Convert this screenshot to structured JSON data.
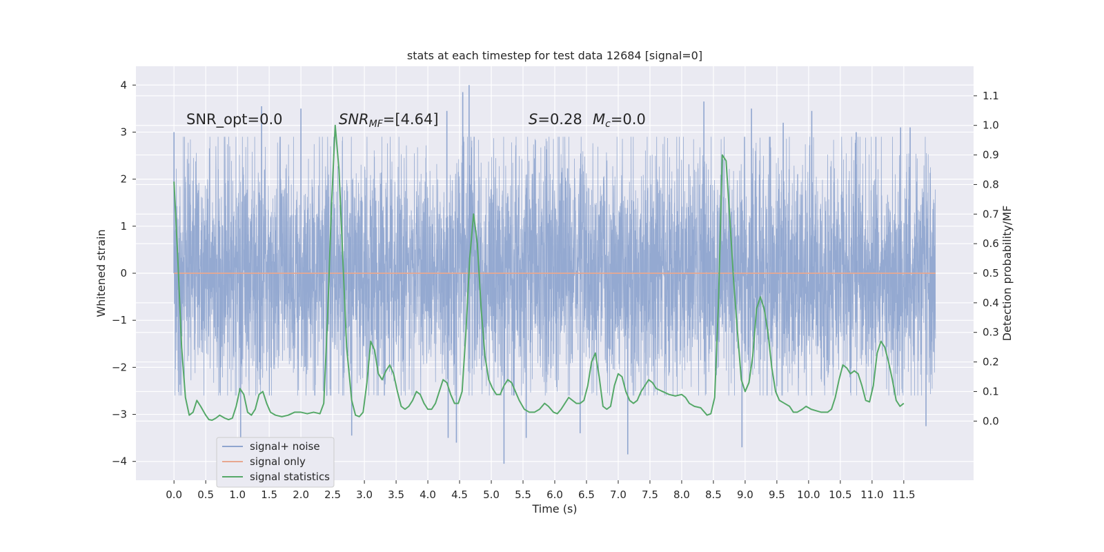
{
  "chart_data": {
    "type": "line",
    "title": "stats at each timestep for test data 12684 [signal=0]",
    "xlabel": "Time (s)",
    "ylabel_left": "Whitened strain",
    "ylabel_right": "Detection probability/MF",
    "xlim": [
      -0.6,
      12.6
    ],
    "ylim_left": [
      -4.4,
      4.4
    ],
    "ylim_right": [
      -0.2,
      1.2
    ],
    "x_ticks": [
      "0.0",
      "0.5",
      "1.0",
      "1.5",
      "2.0",
      "2.5",
      "3.0",
      "3.5",
      "4.0",
      "4.5",
      "5.0",
      "5.5",
      "6.0",
      "6.5",
      "7.0",
      "7.5",
      "8.0",
      "8.5",
      "9.0",
      "9.5",
      "10.0",
      "10.5",
      "11.0",
      "11.5"
    ],
    "y_ticks_left": [
      "−4",
      "−3",
      "−2",
      "−1",
      "0",
      "1",
      "2",
      "3",
      "4"
    ],
    "y_ticks_right": [
      "0.0",
      "0.1",
      "0.2",
      "0.3",
      "0.4",
      "0.5",
      "0.6",
      "0.7",
      "0.8",
      "0.9",
      "1.0",
      "1.1"
    ],
    "grid": true,
    "legend_placement": "lower-left",
    "annotations": {
      "snr_opt": "SNR_opt=0.0",
      "snr_mf_main": "SNR",
      "snr_mf_sub": "MF",
      "snr_mf_value": "=[4.64]",
      "s_main": "S",
      "s_value": "=0.28",
      "mc_main": "M",
      "mc_sub": "c",
      "mc_value": "=0.0"
    },
    "series": [
      {
        "name": "signal+ noise",
        "color": "#8fa5cf",
        "x_range": [
          0.0,
          12.0
        ],
        "band_typical": [
          -1.3,
          1.3
        ],
        "band_envelope": [
          -2.6,
          2.9
        ],
        "extreme_peaks": [
          {
            "x": 0.0,
            "y": 3.0
          },
          {
            "x": 1.05,
            "y": -3.65
          },
          {
            "x": 1.38,
            "y": 3.55
          },
          {
            "x": 2.0,
            "y": 3.5
          },
          {
            "x": 2.8,
            "y": -3.45
          },
          {
            "x": 4.3,
            "y": 3.45
          },
          {
            "x": 4.32,
            "y": -3.5
          },
          {
            "x": 4.45,
            "y": -3.6
          },
          {
            "x": 4.55,
            "y": 3.85
          },
          {
            "x": 4.65,
            "y": 4.0
          },
          {
            "x": 5.2,
            "y": -4.05
          },
          {
            "x": 5.55,
            "y": -3.5
          },
          {
            "x": 6.4,
            "y": -3.4
          },
          {
            "x": 7.15,
            "y": -3.85
          },
          {
            "x": 8.35,
            "y": 3.65
          },
          {
            "x": 8.95,
            "y": -3.7
          },
          {
            "x": 9.1,
            "y": 3.5
          },
          {
            "x": 9.6,
            "y": 3.2
          },
          {
            "x": 10.05,
            "y": 3.45
          },
          {
            "x": 10.75,
            "y": 3.0
          },
          {
            "x": 11.45,
            "y": 3.1
          },
          {
            "x": 11.6,
            "y": 3.1
          },
          {
            "x": 11.85,
            "y": -3.25
          }
        ]
      },
      {
        "name": "signal only",
        "color": "#e8a78f",
        "x": [
          0.0,
          12.0
        ],
        "y": [
          0.0,
          0.0
        ]
      },
      {
        "name": "signal statistics",
        "color": "#55a868",
        "axis": "right",
        "points": [
          [
            0.0,
            0.81
          ],
          [
            0.06,
            0.55
          ],
          [
            0.12,
            0.25
          ],
          [
            0.18,
            0.08
          ],
          [
            0.24,
            0.02
          ],
          [
            0.3,
            0.03
          ],
          [
            0.36,
            0.07
          ],
          [
            0.42,
            0.05
          ],
          [
            0.5,
            0.02
          ],
          [
            0.55,
            0.005
          ],
          [
            0.6,
            0.003
          ],
          [
            0.66,
            0.01
          ],
          [
            0.72,
            0.02
          ],
          [
            0.8,
            0.01
          ],
          [
            0.86,
            0.005
          ],
          [
            0.92,
            0.01
          ],
          [
            0.98,
            0.05
          ],
          [
            1.04,
            0.11
          ],
          [
            1.1,
            0.09
          ],
          [
            1.16,
            0.03
          ],
          [
            1.22,
            0.02
          ],
          [
            1.28,
            0.04
          ],
          [
            1.34,
            0.09
          ],
          [
            1.4,
            0.1
          ],
          [
            1.46,
            0.06
          ],
          [
            1.52,
            0.03
          ],
          [
            1.6,
            0.02
          ],
          [
            1.7,
            0.015
          ],
          [
            1.8,
            0.02
          ],
          [
            1.9,
            0.03
          ],
          [
            2.0,
            0.03
          ],
          [
            2.1,
            0.025
          ],
          [
            2.2,
            0.03
          ],
          [
            2.3,
            0.025
          ],
          [
            2.36,
            0.06
          ],
          [
            2.42,
            0.35
          ],
          [
            2.48,
            0.72
          ],
          [
            2.54,
            1.0
          ],
          [
            2.6,
            0.85
          ],
          [
            2.66,
            0.55
          ],
          [
            2.72,
            0.25
          ],
          [
            2.8,
            0.07
          ],
          [
            2.86,
            0.02
          ],
          [
            2.92,
            0.015
          ],
          [
            2.98,
            0.03
          ],
          [
            3.04,
            0.13
          ],
          [
            3.1,
            0.27
          ],
          [
            3.16,
            0.24
          ],
          [
            3.22,
            0.16
          ],
          [
            3.28,
            0.14
          ],
          [
            3.34,
            0.17
          ],
          [
            3.4,
            0.19
          ],
          [
            3.46,
            0.16
          ],
          [
            3.52,
            0.1
          ],
          [
            3.58,
            0.05
          ],
          [
            3.64,
            0.04
          ],
          [
            3.7,
            0.05
          ],
          [
            3.76,
            0.07
          ],
          [
            3.82,
            0.1
          ],
          [
            3.88,
            0.09
          ],
          [
            3.94,
            0.06
          ],
          [
            4.0,
            0.04
          ],
          [
            4.06,
            0.04
          ],
          [
            4.12,
            0.06
          ],
          [
            4.18,
            0.1
          ],
          [
            4.24,
            0.14
          ],
          [
            4.3,
            0.13
          ],
          [
            4.36,
            0.09
          ],
          [
            4.42,
            0.06
          ],
          [
            4.48,
            0.06
          ],
          [
            4.54,
            0.1
          ],
          [
            4.6,
            0.3
          ],
          [
            4.66,
            0.55
          ],
          [
            4.72,
            0.7
          ],
          [
            4.78,
            0.6
          ],
          [
            4.84,
            0.38
          ],
          [
            4.9,
            0.22
          ],
          [
            4.96,
            0.14
          ],
          [
            5.02,
            0.11
          ],
          [
            5.08,
            0.09
          ],
          [
            5.14,
            0.09
          ],
          [
            5.2,
            0.12
          ],
          [
            5.26,
            0.14
          ],
          [
            5.32,
            0.13
          ],
          [
            5.38,
            0.1
          ],
          [
            5.44,
            0.07
          ],
          [
            5.52,
            0.04
          ],
          [
            5.6,
            0.03
          ],
          [
            5.68,
            0.03
          ],
          [
            5.76,
            0.04
          ],
          [
            5.84,
            0.06
          ],
          [
            5.9,
            0.05
          ],
          [
            5.98,
            0.03
          ],
          [
            6.04,
            0.025
          ],
          [
            6.1,
            0.04
          ],
          [
            6.16,
            0.06
          ],
          [
            6.22,
            0.08
          ],
          [
            6.28,
            0.07
          ],
          [
            6.34,
            0.06
          ],
          [
            6.4,
            0.06
          ],
          [
            6.46,
            0.07
          ],
          [
            6.52,
            0.12
          ],
          [
            6.58,
            0.2
          ],
          [
            6.64,
            0.23
          ],
          [
            6.7,
            0.15
          ],
          [
            6.76,
            0.05
          ],
          [
            6.82,
            0.04
          ],
          [
            6.88,
            0.05
          ],
          [
            6.94,
            0.12
          ],
          [
            7.0,
            0.16
          ],
          [
            7.06,
            0.15
          ],
          [
            7.12,
            0.1
          ],
          [
            7.18,
            0.07
          ],
          [
            7.24,
            0.06
          ],
          [
            7.3,
            0.07
          ],
          [
            7.36,
            0.1
          ],
          [
            7.42,
            0.12
          ],
          [
            7.48,
            0.14
          ],
          [
            7.54,
            0.13
          ],
          [
            7.6,
            0.11
          ],
          [
            7.7,
            0.1
          ],
          [
            7.8,
            0.09
          ],
          [
            7.9,
            0.085
          ],
          [
            8.0,
            0.09
          ],
          [
            8.06,
            0.08
          ],
          [
            8.12,
            0.06
          ],
          [
            8.2,
            0.05
          ],
          [
            8.3,
            0.045
          ],
          [
            8.4,
            0.02
          ],
          [
            8.46,
            0.025
          ],
          [
            8.52,
            0.08
          ],
          [
            8.58,
            0.4
          ],
          [
            8.64,
            0.9
          ],
          [
            8.7,
            0.88
          ],
          [
            8.76,
            0.68
          ],
          [
            8.82,
            0.47
          ],
          [
            8.88,
            0.3
          ],
          [
            8.94,
            0.14
          ],
          [
            9.0,
            0.1
          ],
          [
            9.06,
            0.13
          ],
          [
            9.12,
            0.22
          ],
          [
            9.18,
            0.38
          ],
          [
            9.24,
            0.42
          ],
          [
            9.3,
            0.38
          ],
          [
            9.36,
            0.3
          ],
          [
            9.42,
            0.18
          ],
          [
            9.48,
            0.1
          ],
          [
            9.54,
            0.07
          ],
          [
            9.62,
            0.06
          ],
          [
            9.7,
            0.05
          ],
          [
            9.76,
            0.03
          ],
          [
            9.82,
            0.03
          ],
          [
            9.9,
            0.04
          ],
          [
            9.96,
            0.05
          ],
          [
            10.04,
            0.04
          ],
          [
            10.12,
            0.035
          ],
          [
            10.2,
            0.03
          ],
          [
            10.3,
            0.03
          ],
          [
            10.36,
            0.04
          ],
          [
            10.42,
            0.08
          ],
          [
            10.48,
            0.14
          ],
          [
            10.54,
            0.19
          ],
          [
            10.6,
            0.18
          ],
          [
            10.66,
            0.16
          ],
          [
            10.72,
            0.17
          ],
          [
            10.78,
            0.16
          ],
          [
            10.84,
            0.12
          ],
          [
            10.9,
            0.07
          ],
          [
            10.96,
            0.065
          ],
          [
            11.02,
            0.12
          ],
          [
            11.08,
            0.23
          ],
          [
            11.14,
            0.27
          ],
          [
            11.2,
            0.25
          ],
          [
            11.26,
            0.2
          ],
          [
            11.32,
            0.14
          ],
          [
            11.38,
            0.07
          ],
          [
            11.44,
            0.05
          ],
          [
            11.5,
            0.06
          ]
        ]
      }
    ]
  }
}
